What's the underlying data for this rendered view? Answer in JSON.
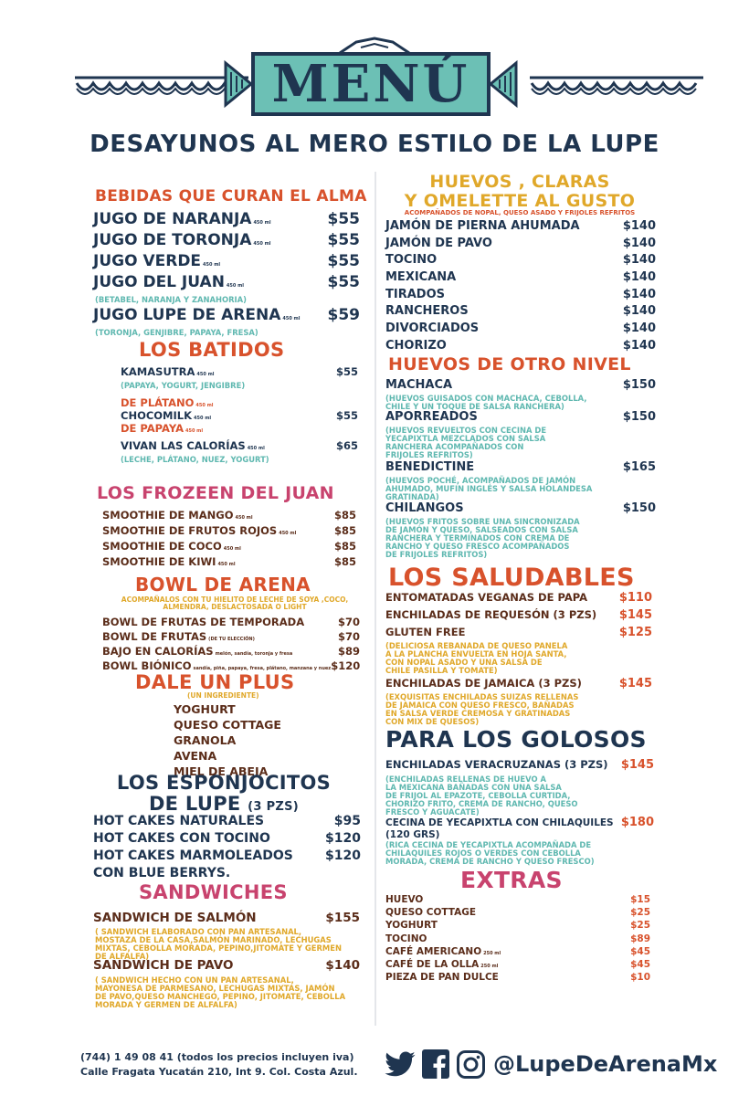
{
  "header": {
    "title": "MENÚ",
    "subtitle": "DESAYUNOS AL MERO ESTILO DE LA LUPE"
  },
  "bebidas": {
    "title": "BEBIDAS QUE CURAN EL ALMA",
    "items": [
      {
        "name": "JUGO DE NARANJA",
        "size": "450 ml",
        "price": "$55"
      },
      {
        "name": "JUGO DE TORONJA",
        "size": "450 ml",
        "price": "$55"
      },
      {
        "name": "JUGO VERDE",
        "size": "450 ml",
        "price": "$55"
      },
      {
        "name": "JUGO DEL JUAN",
        "size": "450 ml",
        "price": "$55"
      },
      {
        "name": "JUGO LUPE DE ARENA",
        "size": "450 ml",
        "price": "$59"
      }
    ],
    "desc_juan": "(BETABEL, NARANJA Y ZANAHORIA)",
    "desc_lupe": "(TORONJA, GENJIBRE, PAPAYA, FRESA)"
  },
  "batidos": {
    "title": "LOS BATIDOS",
    "items": [
      {
        "name": "KAMASUTRA",
        "size": "450 ml",
        "price": "$55"
      },
      {
        "name": "DE PLÁTANO",
        "size": "450 ml",
        "price": ""
      },
      {
        "name": "CHOCOMILK",
        "size": "450 ml",
        "price": "$55"
      },
      {
        "name": "DE PAPAYA",
        "size": "450 ml",
        "price": ""
      },
      {
        "name": "VIVAN LAS CALORÍAS",
        "size": "450 ml",
        "price": "$65"
      }
    ],
    "desc_kamasutra": "(PAPAYA, YOGURT, JENGIBRE)",
    "desc_vivan": "(LECHE, PLÁTANO, NUEZ, YOGURT)"
  },
  "frozeen": {
    "title": "LOS FROZEEN DEL JUAN",
    "items": [
      {
        "name": "SMOOTHIE DE MANGO",
        "size": "450 ml",
        "price": "$85"
      },
      {
        "name": "SMOOTHIE DE FRUTOS ROJOS",
        "size": "450 ml",
        "price": "$85"
      },
      {
        "name": "SMOOTHIE DE COCO",
        "size": "450 ml",
        "price": "$85"
      },
      {
        "name": "SMOOTHIE DE KIWI",
        "size": "450 ml",
        "price": "$85"
      }
    ]
  },
  "bowl": {
    "title": "BOWL DE ARENA",
    "desc": [
      "ACOMPAÑALOS CON TU HIELITO DE LECHE DE SOYA ,COCO,",
      "ALMENDRA, DESLACTOSADA O LIGHT"
    ],
    "items": [
      {
        "name": "BOWL DE FRUTAS DE TEMPORADA",
        "note": "",
        "price": "$70"
      },
      {
        "name": "BOWL DE FRUTAS",
        "note": "(DE TU ELECCIÓN)",
        "price": "$70"
      },
      {
        "name": "BAJO EN CALORÍAS",
        "note": "melón, sandía, toronja y fresa",
        "price": "$89"
      },
      {
        "name": "BOWL BIÓNICO",
        "note": "sandía, piña, papaya, fresa, plátano, manzana y nuez",
        "price": "$120"
      }
    ]
  },
  "plus": {
    "title": "DALE UN PLUS",
    "sub": "(UN INGREDIENTE)",
    "items": [
      "YOGHURT",
      "QUESO COTTAGE",
      "GRANOLA",
      "AVENA",
      "MIEL DE ABEJA"
    ]
  },
  "esponjocitos": {
    "title1": "LOS ESPONJOCITOS",
    "title2": "DE LUPE",
    "title2_small": "(3 PZS)",
    "items": [
      {
        "name": "HOT CAKES NATURALES",
        "price": "$95"
      },
      {
        "name": "HOT CAKES CON TOCINO",
        "price": "$120"
      },
      {
        "name": "HOT CAKES MARMOLEADOS",
        "price": "$120"
      }
    ],
    "extra": "CON BLUE BERRYS."
  },
  "sandwiches": {
    "title": "SANDWICHES",
    "salmon": {
      "name": "SANDWICH DE SALMÓN",
      "price": "$155",
      "desc": [
        "( SANDWICH ELABORADO CON PAN ARTESANAL,",
        "MOSTAZA DE LA CASA,SALMÓN MARINADO, LECHUGAS",
        "MIXTAS, CEBOLLA MORADA, PEPINO,JITOMATE Y GERMEN",
        "DE ALFALFA)"
      ]
    },
    "pavo": {
      "name": "SANDWICH DE PAVO",
      "price": "$140",
      "desc": [
        "( SANDWICH HECHO CON UN PAN ARTESANAL,",
        "MAYONESA DE PARMESANO, LECHUGAS MIXTAS, JAMÓN",
        "DE PAVO,QUESO MANCHEGO, PEPINO, JITOMATE, CEBOLLA",
        "MORADA Y GERMEN DE ALFALFA)"
      ]
    }
  },
  "huevos": {
    "title1": "HUEVOS , CLARAS",
    "title2": "Y OMELETTE AL GUSTO",
    "sub": "ACOMPAÑADOS DE NOPAL, QUESO ASADO Y FRIJOLES REFRITOS",
    "items": [
      {
        "name": "JAMÓN DE  PIERNA AHUMADA",
        "price": "$140"
      },
      {
        "name": "JAMÓN DE PAVO",
        "price": "$140"
      },
      {
        "name": "TOCINO",
        "price": "$140"
      },
      {
        "name": "MEXICANA",
        "price": "$140"
      },
      {
        "name": "TIRADOS",
        "price": "$140"
      },
      {
        "name": "RANCHEROS",
        "price": "$140"
      },
      {
        "name": "DIVORCIADOS",
        "price": "$140"
      },
      {
        "name": "CHORIZO",
        "price": "$140"
      }
    ]
  },
  "otronivel": {
    "title": "HUEVOS DE OTRO NIVEL",
    "items": [
      {
        "name": "MACHACA",
        "price": "$150",
        "desc": [
          "(HUEVOS GUISADOS CON MACHACA, CEBOLLA,",
          "CHILE Y UN TOQUE DE SALSA RANCHERA)"
        ]
      },
      {
        "name": "APORREADOS",
        "price": "$150",
        "desc": [
          "(HUEVOS REVUELTOS CON CECINA DE",
          "YECAPIXTLA MEZCLADOS CON SALSA",
          "RANCHERA ACOMPAÑADOS CON",
          "FRIJOLES REFRITOS)"
        ]
      },
      {
        "name": "BENEDICTINE",
        "price": "$165",
        "desc": [
          "(HUEVOS POCHÉ, ACOMPAÑADOS DE JAMÓN",
          "AHUMADO, MUFIN INGLÉS Y SALSA HOLANDESA",
          "GRATINADA)"
        ]
      },
      {
        "name": "CHILANGOS",
        "price": "$150",
        "desc": [
          "(HUEVOS FRITOS SOBRE UNA SINCRONIZADA",
          "DE JAMÓN Y QUESO, SALSEADOS CON SALSA",
          "RANCHERA Y TERMINADOS CON CREMA DE",
          "RANCHO Y QUESO FRESCO ACOMPAÑADOS",
          "DE FRIJOLES REFRITOS)"
        ]
      }
    ]
  },
  "saludables": {
    "title": "LOS SALUDABLES",
    "items": [
      {
        "name": "ENTOMATADAS VEGANAS DE PAPA",
        "price": "$110",
        "desc": []
      },
      {
        "name": "ENCHILADAS DE REQUESÓN (3 PZS)",
        "price": "$145",
        "desc": []
      },
      {
        "name": "GLUTEN FREE",
        "price": "$125",
        "desc": [
          "(DELICIOSA REBANADA DE QUESO PANELA",
          "A LA PLANCHA ENVUELTA EN HOJA SANTA,",
          "CON NOPAL ASADO Y UNA SALSA DE",
          "CHILE PASILLA Y TOMATE)"
        ]
      },
      {
        "name": "ENCHILADAS DE JAMAICA (3 PZS)",
        "price": "$145",
        "desc": [
          "(EXQUISITAS ENCHILADAS SUIZAS RELLENAS",
          "DE JAMAICA CON QUESO FRESCO, BAÑADAS",
          "EN SALSA VERDE CREMOSA Y GRATINADAS",
          "CON MIX DE QUESOS)"
        ]
      }
    ]
  },
  "golosos": {
    "title": "PARA LOS GOLOSOS",
    "items": [
      {
        "name": "ENCHILADAS VERACRUZANAS (3 PZS)",
        "price": "$145",
        "desc": [
          "(ENCHILADAS RELLENAS DE HUEVO A",
          "LA MEXICANA BAÑADAS CON UNA SALSA",
          "DE FRIJOL AL EPAZOTE, CEBOLLA CURTIDA,",
          "CHORIZO FRITO, CREMA DE RANCHO, QUESO",
          "FRESCO Y AGUACATE)"
        ]
      },
      {
        "name": "CECINA DE YECAPIXTLA CON CHILAQUILES",
        "name2": "(120 GRS)",
        "price": "$180",
        "desc": [
          "(RICA CECINA DE YECAPIXTLA ACOMPAÑADA DE",
          "CHILAQUILES ROJOS O VERDES CON CEBOLLA",
          "MORADA, CREMA DE RANCHO Y QUESO FRESCO)"
        ]
      }
    ]
  },
  "extras": {
    "title": "EXTRAS",
    "items": [
      {
        "name": "HUEVO",
        "size": "",
        "price": "$15"
      },
      {
        "name": "QUESO COTTAGE",
        "size": "",
        "price": "$25"
      },
      {
        "name": "YOGHURT",
        "size": "",
        "price": "$25"
      },
      {
        "name": "TOCINO",
        "size": "",
        "price": "$89"
      },
      {
        "name": "CAFÉ AMERICANO",
        "size": "250 ml",
        "price": "$45"
      },
      {
        "name": "CAFÉ DE LA OLLA",
        "size": "250 ml",
        "price": "$45"
      },
      {
        "name": "PIEZA DE PAN DULCE",
        "size": "",
        "price": "$10"
      }
    ]
  },
  "footer": {
    "phone": "(744) 1 49 08 41 (todos los precios incluyen iva)",
    "address": "Calle Fragata Yucatán 210, Int 9. Col. Costa Azul.",
    "handle": "@LupeDeArenaMx"
  },
  "colors": {
    "navy": "#1f3550",
    "orange": "#d8522c",
    "pink": "#c8436e",
    "yellow": "#e0a82a",
    "teal": "#5fb8b0",
    "brown": "#5b2d1a"
  },
  "icons": [
    "twitter-icon",
    "facebook-icon",
    "instagram-icon"
  ]
}
